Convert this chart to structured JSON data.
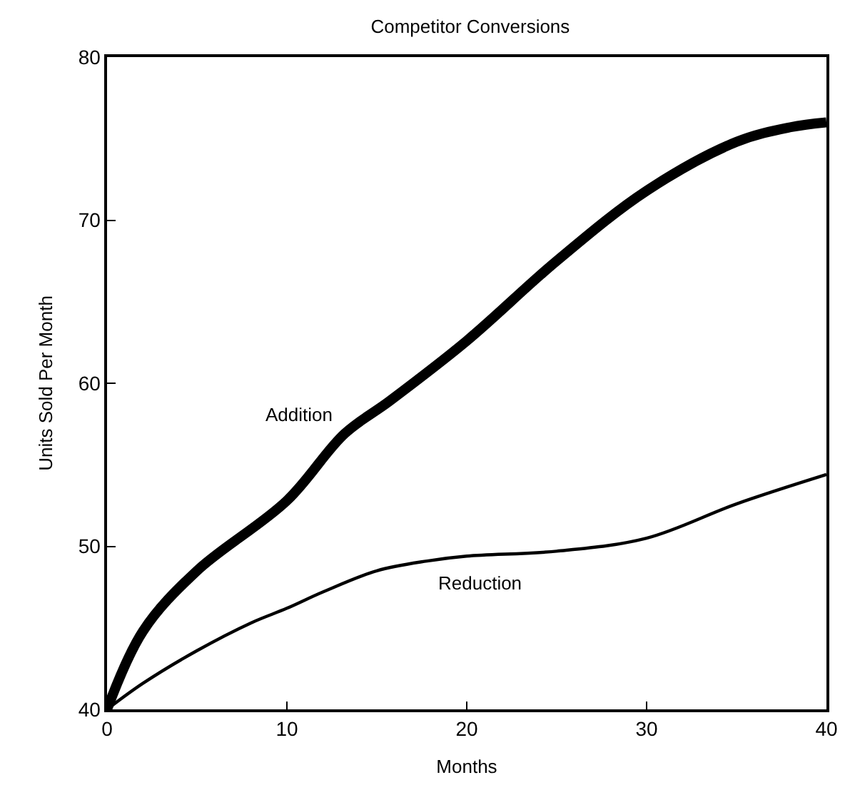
{
  "chart_data": {
    "type": "line",
    "title": "Competitor Conversions",
    "xlabel": "Months",
    "ylabel": "Units Sold Per Month",
    "xlim": [
      0,
      40
    ],
    "xticks": [
      0,
      10,
      20,
      30,
      40
    ],
    "ylim": [
      40,
      80
    ],
    "yticks": [
      40,
      50,
      60,
      70,
      80
    ],
    "legend": false,
    "marker": "none",
    "line_style": "solid",
    "series": [
      {
        "name": "Addition",
        "color": "#000000",
        "x": [
          0,
          2,
          5,
          10,
          13.2,
          15.7,
          20,
          25,
          30,
          35,
          38,
          40
        ],
        "values": [
          40,
          44.8,
          48.5,
          52.8,
          56.9,
          58.9,
          62.6,
          67.5,
          71.8,
          74.8,
          75.7,
          76
        ]
      },
      {
        "name": "Reduction",
        "color": "#000000",
        "x": [
          0,
          2,
          5,
          8,
          10,
          12,
          15,
          17.8,
          20,
          25,
          30,
          35,
          40
        ],
        "values": [
          40,
          41.6,
          43.6,
          45.3,
          46.2,
          47.2,
          48.5,
          49.1,
          49.4,
          49.7,
          50.5,
          52.6,
          54.4
        ]
      }
    ]
  }
}
